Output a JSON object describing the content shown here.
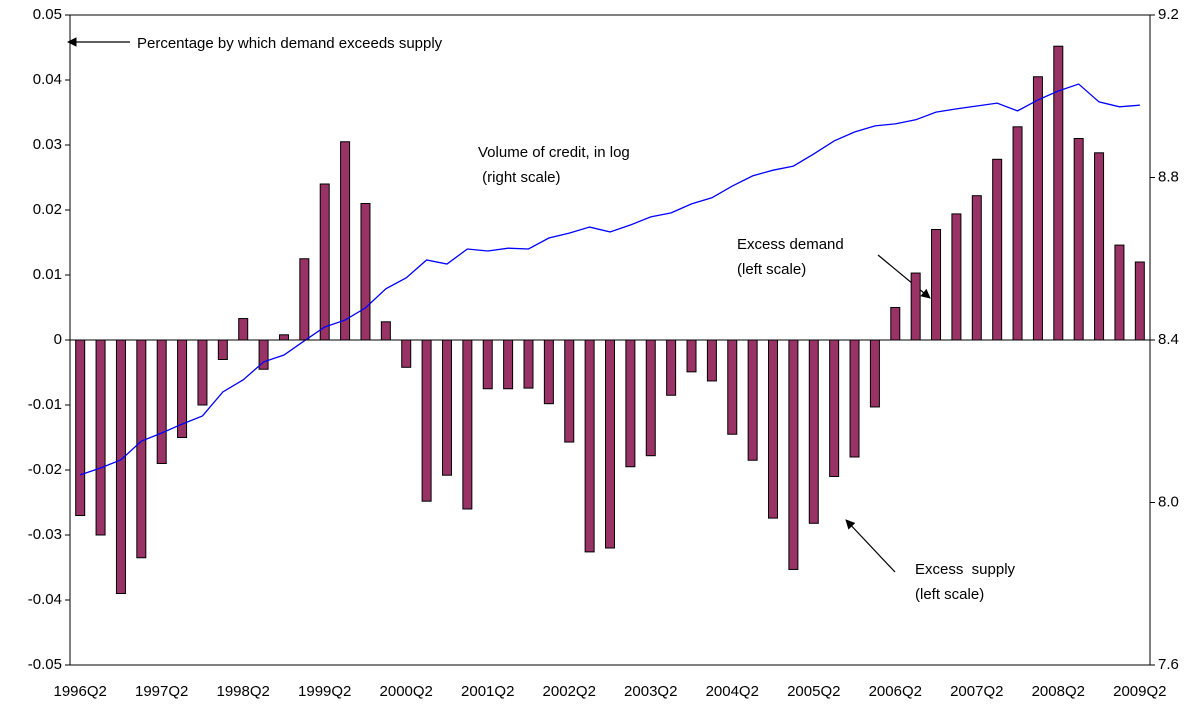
{
  "chart_data": {
    "type": "bar",
    "categories": [
      "1996Q2",
      null,
      null,
      null,
      "1997Q2",
      null,
      null,
      null,
      "1998Q2",
      null,
      null,
      null,
      "1999Q2",
      null,
      null,
      null,
      "2000Q2",
      null,
      null,
      null,
      "2001Q2",
      null,
      null,
      null,
      "2002Q2",
      null,
      null,
      null,
      "2003Q2",
      null,
      null,
      null,
      "2004Q2",
      null,
      null,
      null,
      "2005Q2",
      null,
      null,
      null,
      "2006Q2",
      null,
      null,
      null,
      "2007Q2",
      null,
      null,
      null,
      "2008Q2",
      null,
      null,
      null,
      "2009Q2"
    ],
    "series": [
      {
        "type": "bar",
        "color": "#993366",
        "values": [
          -0.027,
          -0.03,
          -0.039,
          -0.0335,
          -0.019,
          -0.015,
          -0.01,
          -0.003,
          0.0033,
          -0.0045,
          0.0008,
          0.0125,
          0.024,
          0.0305,
          0.021,
          0.0028,
          -0.0042,
          -0.0248,
          -0.0208,
          -0.026,
          -0.0075,
          -0.0075,
          -0.0074,
          -0.0098,
          -0.0157,
          -0.0326,
          -0.032,
          -0.0195,
          -0.0178,
          -0.0085,
          -0.0049,
          -0.0063,
          -0.0145,
          -0.0185,
          -0.0274,
          -0.0353,
          -0.0282,
          -0.021,
          -0.018,
          -0.0103,
          0.005,
          0.0103,
          0.017,
          0.0194,
          0.0222,
          0.0278,
          0.0328,
          0.0405,
          0.0452,
          0.031,
          0.0288,
          0.0146,
          0.012
        ]
      },
      {
        "type": "line",
        "color": "#0000ff",
        "axis": "y2",
        "values": [
          8.068,
          8.085,
          8.105,
          8.151,
          8.171,
          8.193,
          8.213,
          8.272,
          8.302,
          8.346,
          8.363,
          8.398,
          8.432,
          8.449,
          8.479,
          8.526,
          8.553,
          8.597,
          8.587,
          8.624,
          8.619,
          8.626,
          8.624,
          8.651,
          8.663,
          8.678,
          8.666,
          8.683,
          8.703,
          8.713,
          8.735,
          8.75,
          8.779,
          8.804,
          8.818,
          8.828,
          8.858,
          8.89,
          8.912,
          8.927,
          8.932,
          8.942,
          8.961,
          8.969,
          8.976,
          8.983,
          8.964,
          8.991,
          9.013,
          9.03,
          8.986,
          8.974,
          8.978
        ]
      }
    ],
    "ylim": [
      -0.05,
      0.05
    ],
    "yticks": [
      -0.05,
      -0.04,
      -0.03,
      -0.02,
      -0.01,
      0,
      0.01,
      0.02,
      0.03,
      0.04,
      0.05
    ],
    "y2lim": [
      7.6,
      9.2
    ],
    "y2ticks": [
      7.6,
      {
        "value": 8,
        "label": "8.0"
      },
      8.4,
      8.8,
      9.2
    ],
    "grid": false,
    "annotations": [
      {
        "lines": [
          "Percentage by which demand exceeds supply"
        ]
      },
      {
        "lines": [
          "Volume of credit, in log",
          " (right scale)"
        ]
      },
      {
        "lines": [
          "Excess demand",
          "(left scale)"
        ]
      },
      {
        "lines": [
          "Excess  supply",
          "(left scale)"
        ]
      }
    ]
  }
}
